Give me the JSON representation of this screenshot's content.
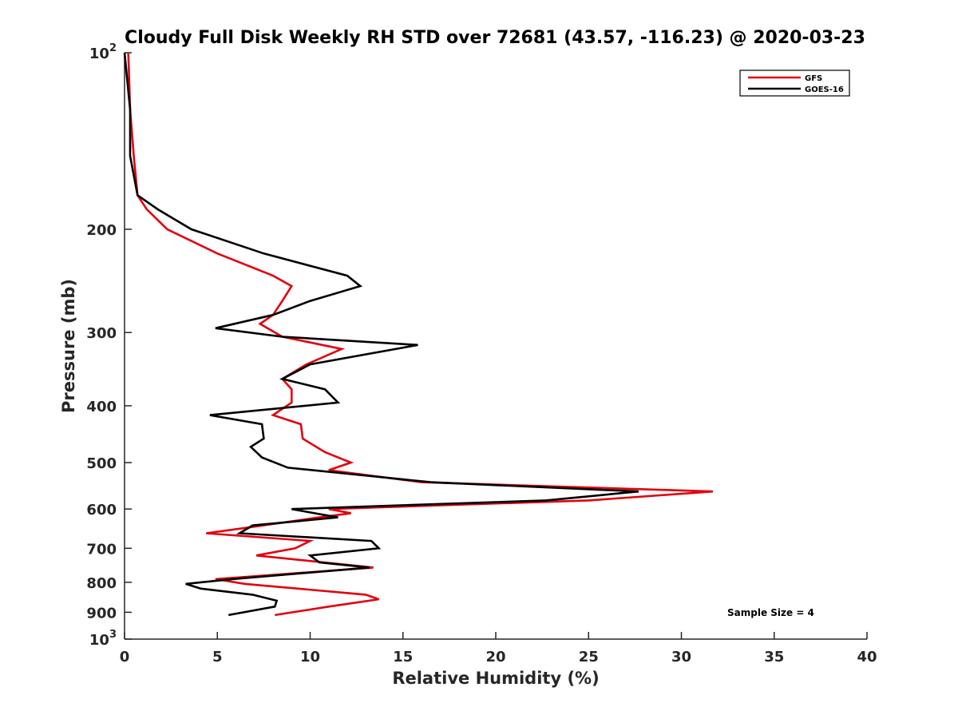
{
  "chart_data": {
    "type": "line",
    "title": "Cloudy Full Disk Weekly RH STD over 72681 (43.57, -116.23) @ 2020-03-23",
    "xlabel": "Relative Humidity (%)",
    "ylabel": "Pressure (mb)",
    "xlim": [
      0,
      40
    ],
    "ylim": [
      100,
      1000
    ],
    "y_scale": "log",
    "y_reversed": true,
    "x_ticks": [
      0,
      5,
      10,
      15,
      20,
      25,
      30,
      35,
      40
    ],
    "x_tick_labels": [
      "0",
      "5",
      "10",
      "15",
      "20",
      "25",
      "30",
      "35",
      "40"
    ],
    "y_ticks": [
      100,
      200,
      300,
      400,
      500,
      600,
      700,
      800,
      900,
      1000
    ],
    "y_tick_labels": [
      {
        "base": "10",
        "exp": "2"
      },
      {
        "base": "200",
        "exp": ""
      },
      {
        "base": "300",
        "exp": ""
      },
      {
        "base": "400",
        "exp": ""
      },
      {
        "base": "500",
        "exp": ""
      },
      {
        "base": "600",
        "exp": ""
      },
      {
        "base": "700",
        "exp": ""
      },
      {
        "base": "800",
        "exp": ""
      },
      {
        "base": "900",
        "exp": ""
      },
      {
        "base": "10",
        "exp": "3"
      }
    ],
    "legend_position": "top-right",
    "grid": false,
    "annotation": "Sample Size = 4",
    "series": [
      {
        "name": "GFS",
        "color": "#e3000f",
        "points": [
          [
            0.2,
            100
          ],
          [
            0.3,
            125
          ],
          [
            0.5,
            150
          ],
          [
            0.7,
            175
          ],
          [
            1.2,
            185
          ],
          [
            2.3,
            200
          ],
          [
            5.0,
            220
          ],
          [
            8.0,
            240
          ],
          [
            9.0,
            250
          ],
          [
            8.5,
            265
          ],
          [
            8.0,
            280
          ],
          [
            7.3,
            290
          ],
          [
            8.5,
            305
          ],
          [
            11.7,
            320
          ],
          [
            9.8,
            340
          ],
          [
            8.5,
            360
          ],
          [
            9.0,
            375
          ],
          [
            9.0,
            395
          ],
          [
            8.0,
            415
          ],
          [
            9.5,
            430
          ],
          [
            9.6,
            455
          ],
          [
            10.8,
            480
          ],
          [
            12.2,
            500
          ],
          [
            11.0,
            515
          ],
          [
            16.0,
            540
          ],
          [
            31.7,
            560
          ],
          [
            25.0,
            580
          ],
          [
            11.0,
            600
          ],
          [
            12.2,
            610
          ],
          [
            10.5,
            620
          ],
          [
            6.7,
            645
          ],
          [
            4.4,
            660
          ],
          [
            10.0,
            680
          ],
          [
            9.2,
            700
          ],
          [
            7.1,
            720
          ],
          [
            13.4,
            755
          ],
          [
            4.9,
            790
          ],
          [
            6.5,
            805
          ],
          [
            13.0,
            840
          ],
          [
            13.7,
            855
          ],
          [
            11.0,
            880
          ],
          [
            8.1,
            910
          ]
        ]
      },
      {
        "name": "GOES-16",
        "color": "#000000",
        "points": [
          [
            0.0,
            100
          ],
          [
            0.3,
            125
          ],
          [
            0.3,
            150
          ],
          [
            0.7,
            175
          ],
          [
            1.8,
            185
          ],
          [
            3.6,
            200
          ],
          [
            7.5,
            220
          ],
          [
            12.0,
            240
          ],
          [
            12.7,
            250
          ],
          [
            10.0,
            265
          ],
          [
            8.0,
            280
          ],
          [
            4.9,
            295
          ],
          [
            8.5,
            305
          ],
          [
            15.8,
            315
          ],
          [
            10.0,
            340
          ],
          [
            8.5,
            360
          ],
          [
            10.8,
            375
          ],
          [
            11.5,
            395
          ],
          [
            4.6,
            415
          ],
          [
            7.4,
            430
          ],
          [
            7.5,
            455
          ],
          [
            6.8,
            470
          ],
          [
            7.4,
            490
          ],
          [
            8.8,
            510
          ],
          [
            16.5,
            540
          ],
          [
            27.7,
            560
          ],
          [
            22.7,
            580
          ],
          [
            9.0,
            600
          ],
          [
            11.5,
            620
          ],
          [
            6.9,
            640
          ],
          [
            6.2,
            660
          ],
          [
            13.3,
            680
          ],
          [
            13.7,
            700
          ],
          [
            10.0,
            720
          ],
          [
            10.5,
            740
          ],
          [
            13.2,
            755
          ],
          [
            5.8,
            790
          ],
          [
            3.3,
            805
          ],
          [
            4.1,
            820
          ],
          [
            6.9,
            840
          ],
          [
            8.2,
            860
          ],
          [
            8.1,
            880
          ],
          [
            5.6,
            910
          ]
        ]
      }
    ]
  }
}
